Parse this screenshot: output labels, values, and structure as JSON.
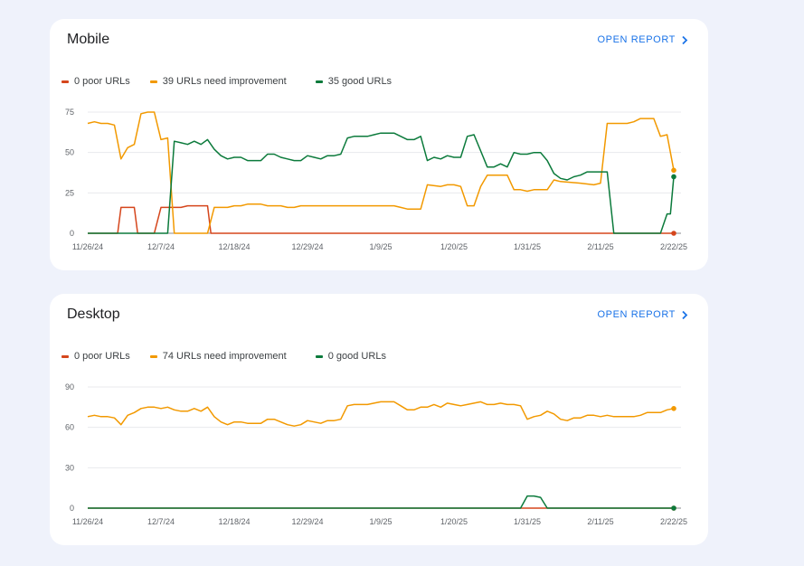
{
  "panels": [
    {
      "title": "Mobile",
      "open_report_label": "OPEN REPORT",
      "legend": [
        {
          "label": "0 poor URLs",
          "color": "#d5461c"
        },
        {
          "label": "39 URLs need improvement",
          "color": "#f29900"
        },
        {
          "label": "35 good URLs",
          "color": "#0b7a3b"
        }
      ]
    },
    {
      "title": "Desktop",
      "open_report_label": "OPEN REPORT",
      "legend": [
        {
          "label": "0 poor URLs",
          "color": "#d5461c"
        },
        {
          "label": "74 URLs need improvement",
          "color": "#f29900"
        },
        {
          "label": "0 good URLs",
          "color": "#0b7a3b"
        }
      ]
    }
  ],
  "chart_data": [
    {
      "type": "line",
      "x_tick_labels": [
        "11/26/24",
        "12/7/24",
        "12/18/24",
        "12/29/24",
        "1/9/25",
        "1/20/25",
        "1/31/25",
        "2/11/25",
        "2/22/25"
      ],
      "x_tick_days": [
        0,
        11,
        22,
        33,
        44,
        55,
        66,
        77,
        88
      ],
      "y_ticks": [
        0,
        25,
        50,
        75
      ],
      "ylim": [
        0,
        80
      ],
      "grid": true,
      "legend_position": "top-left",
      "series": [
        {
          "name": "0 poor URLs",
          "color": "#d5461c",
          "points": [
            [
              0,
              0
            ],
            [
              4.5,
              0
            ],
            [
              5,
              16
            ],
            [
              7,
              16
            ],
            [
              7.5,
              0
            ],
            [
              10,
              0
            ],
            [
              11,
              16
            ],
            [
              14,
              16
            ],
            [
              15,
              17
            ],
            [
              18,
              17
            ],
            [
              18.5,
              0
            ],
            [
              88,
              0
            ]
          ]
        },
        {
          "name": "39 URLs need improvement",
          "color": "#f29900",
          "points": [
            [
              0,
              68
            ],
            [
              1,
              69
            ],
            [
              2,
              68
            ],
            [
              3,
              68
            ],
            [
              4,
              67
            ],
            [
              5,
              46
            ],
            [
              6,
              53
            ],
            [
              7,
              55
            ],
            [
              8,
              74
            ],
            [
              9,
              75
            ],
            [
              10,
              75
            ],
            [
              11,
              58
            ],
            [
              12,
              59
            ],
            [
              13,
              0
            ],
            [
              18,
              0
            ],
            [
              19,
              16
            ],
            [
              21,
              16
            ],
            [
              22,
              17
            ],
            [
              23,
              17
            ],
            [
              24,
              18
            ],
            [
              26,
              18
            ],
            [
              27,
              17
            ],
            [
              29,
              17
            ],
            [
              30,
              16
            ],
            [
              31,
              16
            ],
            [
              32,
              17
            ],
            [
              46,
              17
            ],
            [
              47,
              16
            ],
            [
              48,
              15
            ],
            [
              50,
              15
            ],
            [
              51,
              30
            ],
            [
              53,
              29
            ],
            [
              54,
              30
            ],
            [
              55,
              30
            ],
            [
              56,
              29
            ],
            [
              57,
              17
            ],
            [
              58,
              17
            ],
            [
              59,
              29
            ],
            [
              60,
              36
            ],
            [
              63,
              36
            ],
            [
              64,
              27
            ],
            [
              65,
              27
            ],
            [
              66,
              26
            ],
            [
              67,
              27
            ],
            [
              68,
              27
            ],
            [
              69,
              27
            ],
            [
              70,
              33
            ],
            [
              71,
              32
            ],
            [
              74,
              31
            ],
            [
              76,
              30
            ],
            [
              77,
              31
            ],
            [
              78,
              68
            ],
            [
              81,
              68
            ],
            [
              82,
              69
            ],
            [
              83,
              71
            ],
            [
              85,
              71
            ],
            [
              86,
              60
            ],
            [
              87,
              61
            ],
            [
              88,
              39
            ]
          ]
        },
        {
          "name": "35 good URLs",
          "color": "#0b7a3b",
          "points": [
            [
              0,
              0
            ],
            [
              12,
              0
            ],
            [
              13,
              57
            ],
            [
              14,
              56
            ],
            [
              15,
              55
            ],
            [
              16,
              57
            ],
            [
              17,
              55
            ],
            [
              18,
              58
            ],
            [
              19,
              52
            ],
            [
              20,
              48
            ],
            [
              21,
              46
            ],
            [
              22,
              47
            ],
            [
              23,
              47
            ],
            [
              24,
              45
            ],
            [
              26,
              45
            ],
            [
              27,
              49
            ],
            [
              28,
              49
            ],
            [
              29,
              47
            ],
            [
              30,
              46
            ],
            [
              31,
              45
            ],
            [
              32,
              45
            ],
            [
              33,
              48
            ],
            [
              34,
              47
            ],
            [
              35,
              46
            ],
            [
              36,
              48
            ],
            [
              37,
              48
            ],
            [
              38,
              49
            ],
            [
              39,
              59
            ],
            [
              40,
              60
            ],
            [
              42,
              60
            ],
            [
              43,
              61
            ],
            [
              44,
              62
            ],
            [
              46,
              62
            ],
            [
              47,
              60
            ],
            [
              48,
              58
            ],
            [
              49,
              58
            ],
            [
              50,
              60
            ],
            [
              51,
              45
            ],
            [
              52,
              47
            ],
            [
              53,
              46
            ],
            [
              54,
              48
            ],
            [
              55,
              47
            ],
            [
              56,
              47
            ],
            [
              57,
              60
            ],
            [
              58,
              61
            ],
            [
              59,
              51
            ],
            [
              60,
              41
            ],
            [
              61,
              41
            ],
            [
              62,
              43
            ],
            [
              63,
              41
            ],
            [
              64,
              50
            ],
            [
              65,
              49
            ],
            [
              66,
              49
            ],
            [
              67,
              50
            ],
            [
              68,
              50
            ],
            [
              69,
              45
            ],
            [
              70,
              37
            ],
            [
              71,
              34
            ],
            [
              72,
              33
            ],
            [
              73,
              35
            ],
            [
              74,
              36
            ],
            [
              75,
              38
            ],
            [
              78,
              38
            ],
            [
              79,
              0
            ],
            [
              86,
              0
            ],
            [
              87,
              12
            ],
            [
              87.5,
              12
            ],
            [
              88,
              35
            ]
          ]
        }
      ]
    },
    {
      "type": "line",
      "x_tick_labels": [
        "11/26/24",
        "12/7/24",
        "12/18/24",
        "12/29/24",
        "1/9/25",
        "1/20/25",
        "1/31/25",
        "2/11/25",
        "2/22/25"
      ],
      "x_tick_days": [
        0,
        11,
        22,
        33,
        44,
        55,
        66,
        77,
        88
      ],
      "y_ticks": [
        0,
        30,
        60,
        90
      ],
      "ylim": [
        0,
        96
      ],
      "grid": true,
      "legend_position": "top-left",
      "series": [
        {
          "name": "0 poor URLs",
          "color": "#d5461c",
          "points": [
            [
              0,
              0
            ],
            [
              88,
              0
            ]
          ]
        },
        {
          "name": "74 URLs need improvement",
          "color": "#f29900",
          "points": [
            [
              0,
              68
            ],
            [
              1,
              69
            ],
            [
              2,
              68
            ],
            [
              3,
              68
            ],
            [
              4,
              67
            ],
            [
              5,
              62
            ],
            [
              6,
              69
            ],
            [
              7,
              71
            ],
            [
              8,
              74
            ],
            [
              9,
              75
            ],
            [
              10,
              75
            ],
            [
              11,
              74
            ],
            [
              12,
              75
            ],
            [
              13,
              73
            ],
            [
              14,
              72
            ],
            [
              15,
              72
            ],
            [
              16,
              74
            ],
            [
              17,
              72
            ],
            [
              18,
              75
            ],
            [
              19,
              68
            ],
            [
              20,
              64
            ],
            [
              21,
              62
            ],
            [
              22,
              64
            ],
            [
              23,
              64
            ],
            [
              24,
              63
            ],
            [
              26,
              63
            ],
            [
              27,
              66
            ],
            [
              28,
              66
            ],
            [
              29,
              64
            ],
            [
              30,
              62
            ],
            [
              31,
              61
            ],
            [
              32,
              62
            ],
            [
              33,
              65
            ],
            [
              34,
              64
            ],
            [
              35,
              63
            ],
            [
              36,
              65
            ],
            [
              37,
              65
            ],
            [
              38,
              66
            ],
            [
              39,
              76
            ],
            [
              40,
              77
            ],
            [
              42,
              77
            ],
            [
              43,
              78
            ],
            [
              44,
              79
            ],
            [
              46,
              79
            ],
            [
              47,
              76
            ],
            [
              48,
              73
            ],
            [
              49,
              73
            ],
            [
              50,
              75
            ],
            [
              51,
              75
            ],
            [
              52,
              77
            ],
            [
              53,
              75
            ],
            [
              54,
              78
            ],
            [
              55,
              77
            ],
            [
              56,
              76
            ],
            [
              57,
              77
            ],
            [
              58,
              78
            ],
            [
              59,
              79
            ],
            [
              60,
              77
            ],
            [
              61,
              77
            ],
            [
              62,
              78
            ],
            [
              63,
              77
            ],
            [
              64,
              77
            ],
            [
              65,
              76
            ],
            [
              66,
              66
            ],
            [
              67,
              68
            ],
            [
              68,
              69
            ],
            [
              69,
              72
            ],
            [
              70,
              70
            ],
            [
              71,
              66
            ],
            [
              72,
              65
            ],
            [
              73,
              67
            ],
            [
              74,
              67
            ],
            [
              75,
              69
            ],
            [
              76,
              69
            ],
            [
              77,
              68
            ],
            [
              78,
              69
            ],
            [
              79,
              68
            ],
            [
              82,
              68
            ],
            [
              83,
              69
            ],
            [
              84,
              71
            ],
            [
              86,
              71
            ],
            [
              87,
              73
            ],
            [
              88,
              74
            ]
          ]
        },
        {
          "name": "0 good URLs",
          "color": "#0b7a3b",
          "points": [
            [
              0,
              0
            ],
            [
              65,
              0
            ],
            [
              66,
              9
            ],
            [
              67,
              9
            ],
            [
              68,
              8
            ],
            [
              69,
              0
            ],
            [
              88,
              0
            ]
          ]
        }
      ]
    }
  ]
}
